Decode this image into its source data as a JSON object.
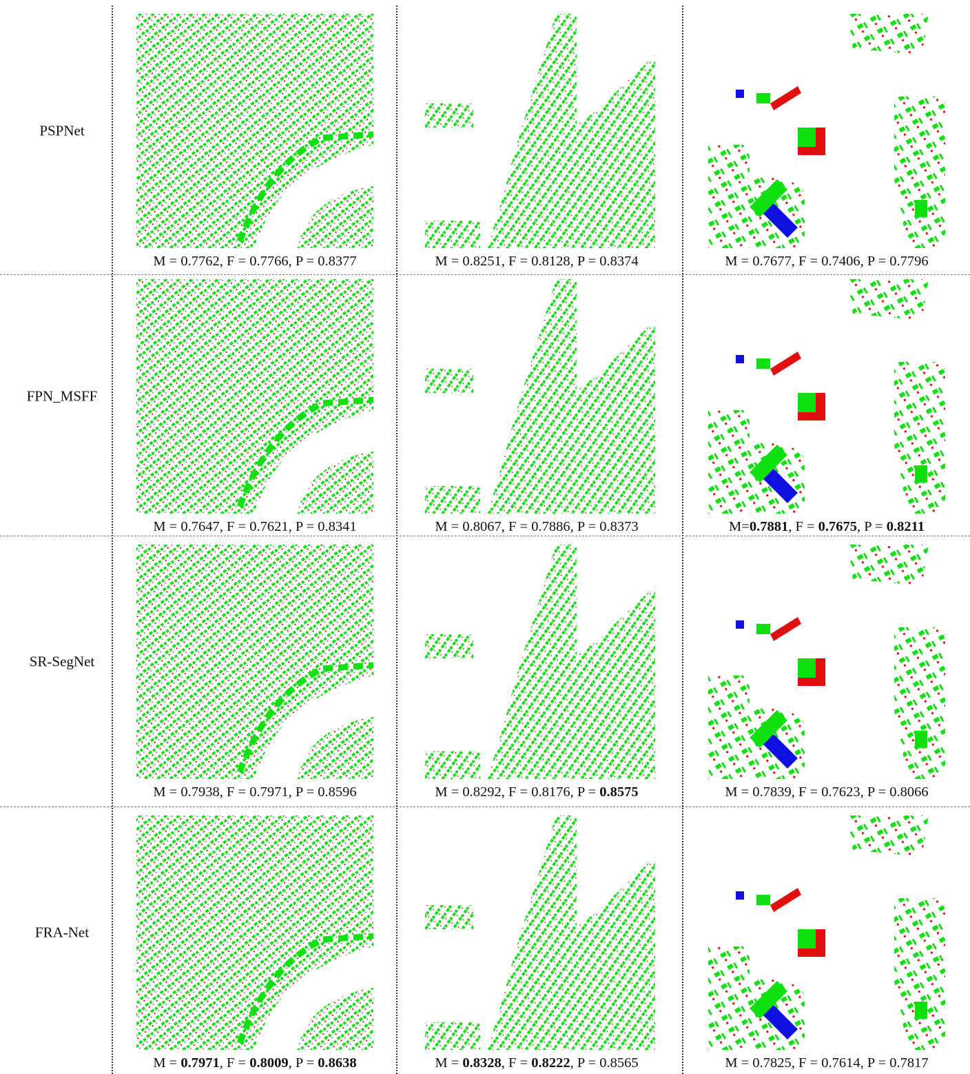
{
  "rows": [
    {
      "method": "PSPNet",
      "cells": [
        {
          "caption": [
            {
              "text": "M = 0.7762, F = 0.7766, P = 0.8377",
              "bold": false
            }
          ]
        },
        {
          "caption": [
            {
              "text": "M = 0.8251, F = 0.8128, P = 0.8374",
              "bold": false
            }
          ]
        },
        {
          "caption": [
            {
              "text": "M = 0.7677, F = 0.7406, P = 0.7796",
              "bold": false
            }
          ]
        }
      ]
    },
    {
      "method": "FPN_MSFF",
      "cells": [
        {
          "caption": [
            {
              "text": "M = 0.7647, F = 0.7621, P = 0.8341",
              "bold": false
            }
          ]
        },
        {
          "caption": [
            {
              "text": "M = 0.8067, F = 0.7886, P = 0.8373",
              "bold": false
            }
          ]
        },
        {
          "caption": [
            {
              "text": "M=",
              "bold": false
            },
            {
              "text": "0.7881",
              "bold": true
            },
            {
              "text": ", F = ",
              "bold": false
            },
            {
              "text": "0.7675",
              "bold": true
            },
            {
              "text": ", P = ",
              "bold": false
            },
            {
              "text": "0.8211",
              "bold": true
            }
          ]
        }
      ]
    },
    {
      "method": "SR-SegNet",
      "cells": [
        {
          "caption": [
            {
              "text": "M = 0.7938, F = 0.7971, P = 0.8596",
              "bold": false
            }
          ]
        },
        {
          "caption": [
            {
              "text": "M = 0.8292, F = 0.8176, P = ",
              "bold": false
            },
            {
              "text": "0.8575",
              "bold": true
            }
          ]
        },
        {
          "caption": [
            {
              "text": "M = 0.7839, F = 0.7623, P = 0.8066",
              "bold": false
            }
          ]
        }
      ]
    },
    {
      "method": "FRA-Net",
      "cells": [
        {
          "caption": [
            {
              "text": "M = ",
              "bold": false
            },
            {
              "text": "0.7971",
              "bold": true
            },
            {
              "text": ", F = ",
              "bold": false
            },
            {
              "text": "0.8009",
              "bold": true
            },
            {
              "text": ", P = ",
              "bold": false
            },
            {
              "text": "0.8638",
              "bold": true
            }
          ]
        },
        {
          "caption": [
            {
              "text": "M = ",
              "bold": false
            },
            {
              "text": "0.8328",
              "bold": true
            },
            {
              "text": ", F = ",
              "bold": false
            },
            {
              "text": "0.8222",
              "bold": true
            },
            {
              "text": ", P = 0.8565",
              "bold": false
            }
          ]
        },
        {
          "caption": [
            {
              "text": "M = 0.7825, F = 0.7614, P = 0.7817",
              "bold": false
            }
          ]
        }
      ]
    }
  ]
}
